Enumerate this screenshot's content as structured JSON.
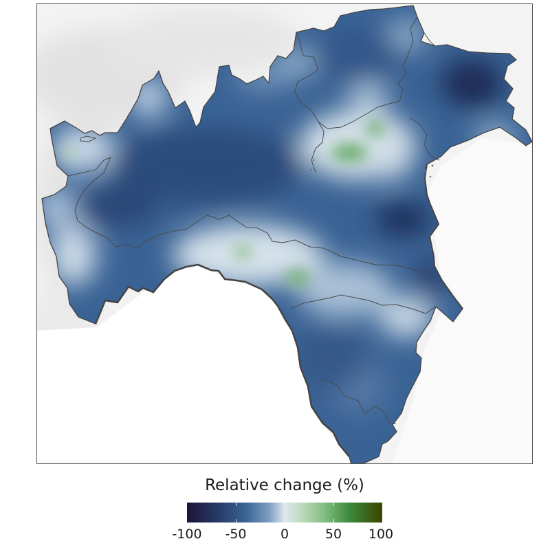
{
  "legend": {
    "title": "Relative change (%)",
    "ticks": [
      "-100",
      "-50",
      "0",
      "50",
      "100"
    ],
    "colors": {
      "min": "#1c1336",
      "neg_mid": "#3a6395",
      "zero": "#dfe6ee",
      "pos_mid": "#3d8a3d",
      "max": "#3b4400"
    }
  },
  "map": {
    "background": "hillshade-grey",
    "region_fill_dominant": "#3a6395",
    "border_color": "#444444"
  }
}
